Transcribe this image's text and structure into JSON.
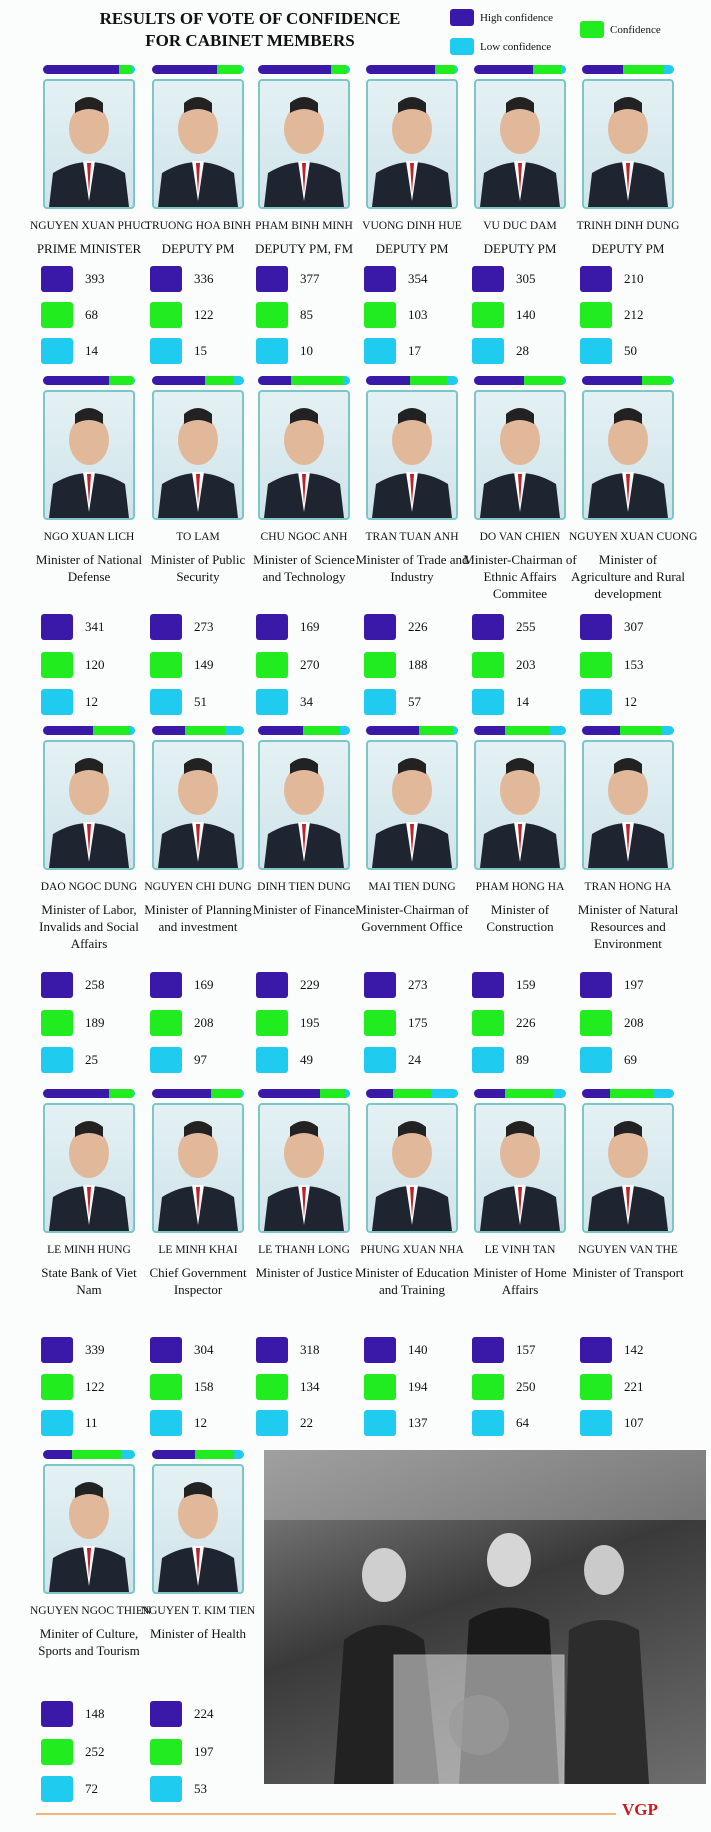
{
  "header": {
    "title": [
      "RESULTS OF VOTE OF CONFIDENCE",
      "FOR CABINET MEMBERS"
    ],
    "legend": [
      {
        "label": "High confidence",
        "color": "#3a18a8"
      },
      {
        "label": "Confidence",
        "color": "#20ec20"
      },
      {
        "label": "Low confidence",
        "color": "#1fcbef"
      }
    ]
  },
  "members": [
    {
      "name": "NGUYEN XUAN PHUC",
      "role": "PRIME MINISTER",
      "values": [
        393,
        68,
        14
      ]
    },
    {
      "name": "TRUONG HOA BINH",
      "role": "DEPUTY PM",
      "values": [
        336,
        122,
        15
      ]
    },
    {
      "name": "PHAM BINH MINH",
      "role": "DEPUTY PM, FM",
      "values": [
        377,
        85,
        10
      ]
    },
    {
      "name": "VUONG DINH HUE",
      "role": "DEPUTY PM",
      "values": [
        354,
        103,
        17
      ]
    },
    {
      "name": "VU DUC DAM",
      "role": "DEPUTY PM",
      "values": [
        305,
        140,
        28
      ]
    },
    {
      "name": "TRINH DINH DUNG",
      "role": "DEPUTY PM",
      "values": [
        210,
        212,
        50
      ]
    },
    {
      "name": "NGO XUAN LICH",
      "role": "Minister of National Defense",
      "values": [
        341,
        120,
        12
      ]
    },
    {
      "name": "TO LAM",
      "role": "Minister of Public Security",
      "values": [
        273,
        149,
        51
      ]
    },
    {
      "name": "CHU NGOC ANH",
      "role": "Minister of Science and Technology",
      "values": [
        169,
        270,
        34
      ]
    },
    {
      "name": "TRAN TUAN ANH",
      "role": "Minister of Trade and Industry",
      "values": [
        226,
        188,
        57
      ]
    },
    {
      "name": "DO VAN CHIEN",
      "role": "Minister-Chairman of Ethnic Affairs Commitee",
      "values": [
        255,
        203,
        14
      ]
    },
    {
      "name": "NGUYEN XUAN CUONG",
      "role": "Minister of Agriculture and Rural development",
      "values": [
        307,
        153,
        12
      ]
    },
    {
      "name": "DAO NGOC DUNG",
      "role": "Minister of Labor, Invalids and Social Affairs",
      "values": [
        258,
        189,
        25
      ]
    },
    {
      "name": "NGUYEN CHI DUNG",
      "role": "Minister of Planning and investment",
      "values": [
        169,
        208,
        97
      ]
    },
    {
      "name": "DINH TIEN DUNG",
      "role": "Minister of Finance",
      "values": [
        229,
        195,
        49
      ]
    },
    {
      "name": "MAI TIEN DUNG",
      "role": "Minister-Chairman of Government Office",
      "values": [
        273,
        175,
        24
      ]
    },
    {
      "name": "PHAM HONG HA",
      "role": "Minister of Construction",
      "values": [
        159,
        226,
        89
      ]
    },
    {
      "name": "TRAN HONG HA",
      "role": "Minister of Natural Resources and Environment",
      "values": [
        197,
        208,
        69
      ]
    },
    {
      "name": "LE MINH HUNG",
      "role": "State Bank of Viet Nam",
      "values": [
        339,
        122,
        11
      ]
    },
    {
      "name": "LE MINH KHAI",
      "role": "Chief Government Inspector",
      "values": [
        304,
        158,
        12
      ]
    },
    {
      "name": "LE THANH LONG",
      "role": "Minister of Justice",
      "values": [
        318,
        134,
        22
      ]
    },
    {
      "name": "PHUNG XUAN NHA",
      "role": "Minister of Education and Training",
      "values": [
        140,
        194,
        137
      ]
    },
    {
      "name": "LE VINH TAN",
      "role": "Minister of Home Affairs",
      "values": [
        157,
        250,
        64
      ]
    },
    {
      "name": "NGUYEN VAN THE",
      "role": "Minister of Transport",
      "values": [
        142,
        221,
        107
      ]
    },
    {
      "name": "NGUYEN NGOC THIEN",
      "role": "Miniter of Culture, Sports and Tourism",
      "values": [
        148,
        252,
        72
      ]
    },
    {
      "name": "NGUYEN T. KIM TIEN",
      "role": "Minister of Health",
      "values": [
        224,
        197,
        53
      ]
    }
  ],
  "footer": {
    "logo": "VGP"
  }
}
